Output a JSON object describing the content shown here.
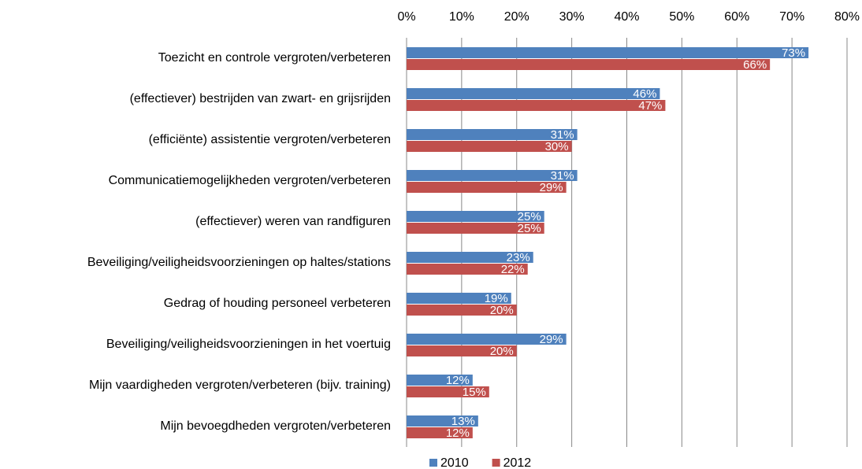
{
  "chart_data": {
    "type": "bar",
    "orientation": "horizontal",
    "categories": [
      "Toezicht en controle vergroten/verbeteren",
      "(effectiever) bestrijden van zwart- en grijsrijden",
      "(efficiënte) assistentie vergroten/verbeteren",
      "Communicatiemogelijkheden vergroten/verbeteren",
      "(effectiever) weren van randfiguren",
      "Beveiliging/veiligheidsvoorzieningen op haltes/stations",
      "Gedrag of houding personeel verbeteren",
      "Beveiliging/veiligheidsvoorzieningen in het voertuig",
      "Mijn vaardigheden vergroten/verbeteren (bijv. training)",
      "Mijn bevoegdheden vergroten/verbeteren"
    ],
    "series": [
      {
        "name": "2010",
        "color": "#4f81bd",
        "values": [
          73,
          46,
          31,
          31,
          25,
          23,
          19,
          29,
          12,
          13
        ],
        "value_labels": [
          "73%",
          "46%",
          "31%",
          "31%",
          "25%",
          "23%",
          "19%",
          "29%",
          "12%",
          "13%"
        ]
      },
      {
        "name": "2012",
        "color": "#c0504d",
        "values": [
          66,
          47,
          30,
          29,
          25,
          22,
          20,
          20,
          15,
          12
        ],
        "value_labels": [
          "66%",
          "47%",
          "30%",
          "29%",
          "25%",
          "22%",
          "20%",
          "20%",
          "15%",
          "12%"
        ]
      }
    ],
    "xlim": [
      0,
      80
    ],
    "xticks": [
      {
        "value": 0,
        "label": "0%"
      },
      {
        "value": 10,
        "label": "10%"
      },
      {
        "value": 20,
        "label": "20%"
      },
      {
        "value": 30,
        "label": "30%"
      },
      {
        "value": 40,
        "label": "40%"
      },
      {
        "value": 50,
        "label": "50%"
      },
      {
        "value": 60,
        "label": "60%"
      },
      {
        "value": 70,
        "label": "70%"
      },
      {
        "value": 80,
        "label": "80%"
      }
    ],
    "grid": true,
    "legend": "bottom"
  }
}
